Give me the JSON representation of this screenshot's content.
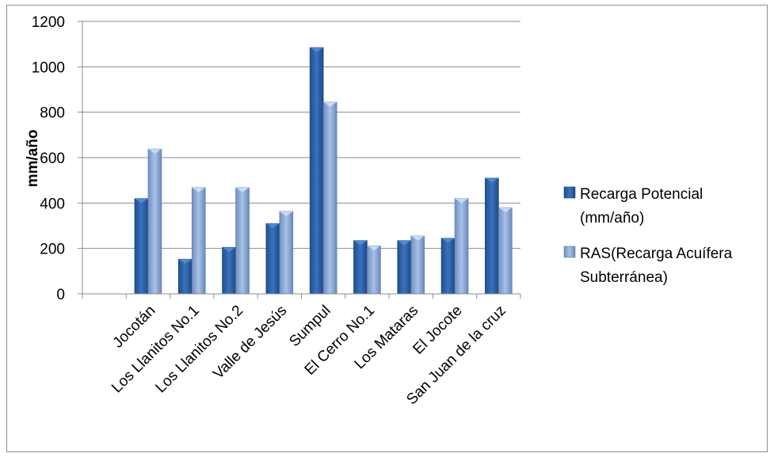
{
  "chart_data": {
    "type": "bar",
    "title": "",
    "xlabel": "",
    "ylabel": "mm/año",
    "ylim": [
      0,
      1200
    ],
    "yticks": [
      0,
      200,
      400,
      600,
      800,
      1000,
      1200
    ],
    "grid": true,
    "legend_position": "right",
    "categories": [
      "",
      "Jocotán",
      "Los Llanitos No.1",
      "Los Llanitos No.2",
      "Valle de Jesús",
      "Sumpul",
      "El Cerro No.1",
      "Los Mataras",
      "El Jocote",
      "San Juan de la cruz"
    ],
    "series": [
      {
        "name": "Recarga Potencial (mm/año)",
        "legend_lines": [
          "Recarga Potencial",
          "(mm/año)"
        ],
        "color": "#2e62a6",
        "values": [
          null,
          420,
          153,
          205,
          310,
          1085,
          235,
          235,
          245,
          510
        ]
      },
      {
        "name": "RAS(Recarga Acuífera Subterránea)",
        "legend_lines": [
          "RAS(Recarga Acuífera",
          "Subterránea)"
        ],
        "color": "#8ba9d6",
        "values": [
          null,
          638,
          468,
          468,
          363,
          845,
          212,
          255,
          420,
          380
        ]
      }
    ]
  }
}
